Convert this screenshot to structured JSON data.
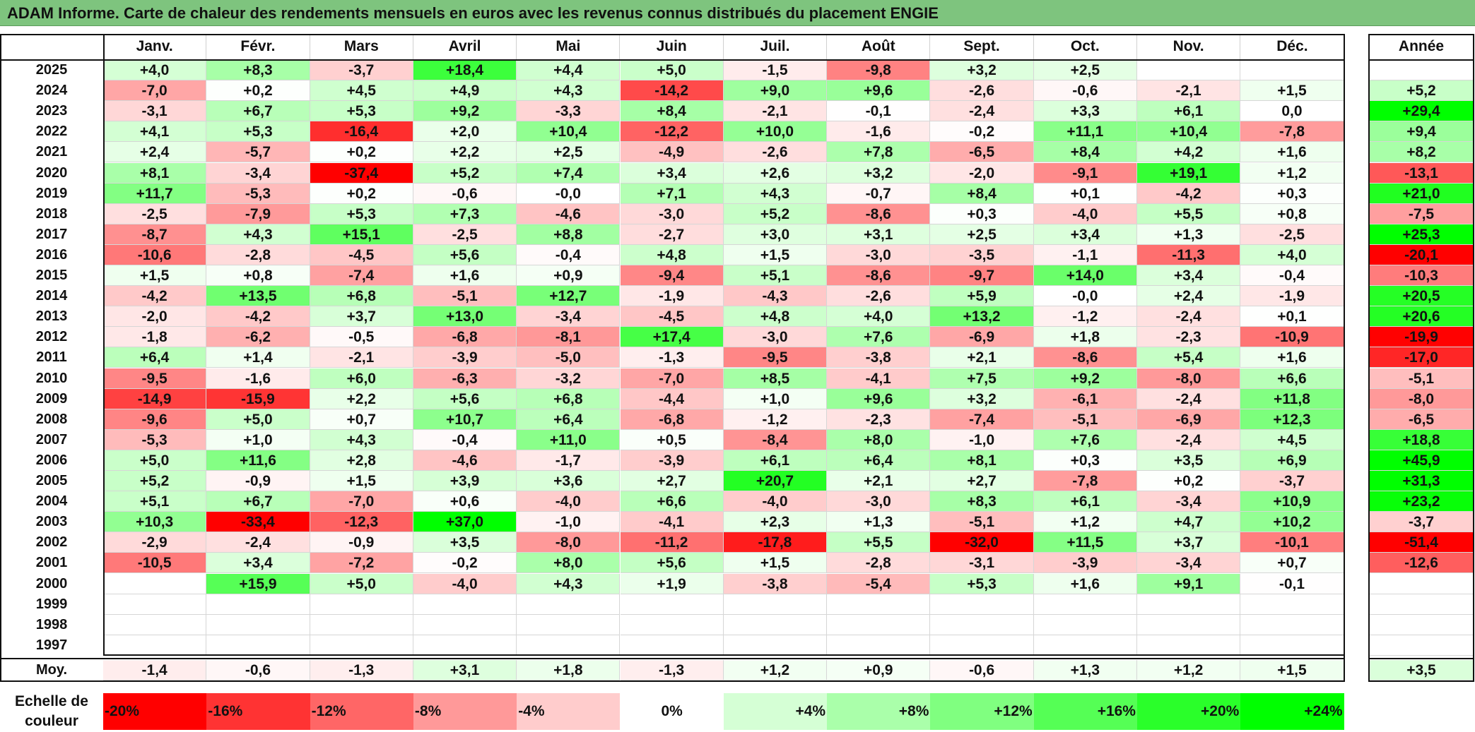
{
  "title": "ADAM Informe. Carte de chaleur des rendements mensuels en euros avec les revenus connus distribués du placement ENGIE",
  "chart_data": {
    "type": "heatmap",
    "title": "ADAM Informe. Carte de chaleur des rendements mensuels en euros avec les revenus connus distribués du placement ENGIE",
    "columns": [
      "Janv.",
      "Févr.",
      "Mars",
      "Avril",
      "Mai",
      "Juin",
      "Juil.",
      "Août",
      "Sept.",
      "Oct.",
      "Nov.",
      "Déc."
    ],
    "year_header": "Année",
    "rows": [
      {
        "year": "2025",
        "values": [
          "+4,0",
          "+8,3",
          "-3,7",
          "+18,4",
          "+4,4",
          "+5,0",
          "-1,5",
          "-9,8",
          "+3,2",
          "+2,5",
          "",
          ""
        ],
        "annual": ""
      },
      {
        "year": "2024",
        "values": [
          "-7,0",
          "+0,2",
          "+4,5",
          "+4,9",
          "+4,3",
          "-14,2",
          "+9,0",
          "+9,6",
          "-2,6",
          "-0,6",
          "-2,1",
          "+1,5"
        ],
        "annual": "+5,2"
      },
      {
        "year": "2023",
        "values": [
          "-3,1",
          "+6,7",
          "+5,3",
          "+9,2",
          "-3,3",
          "+8,4",
          "-2,1",
          "-0,1",
          "-2,4",
          "+3,3",
          "+6,1",
          "0,0"
        ],
        "annual": "+29,4"
      },
      {
        "year": "2022",
        "values": [
          "+4,1",
          "+5,3",
          "-16,4",
          "+2,0",
          "+10,4",
          "-12,2",
          "+10,0",
          "-1,6",
          "-0,2",
          "+11,1",
          "+10,4",
          "-7,8"
        ],
        "annual": "+9,4"
      },
      {
        "year": "2021",
        "values": [
          "+2,4",
          "-5,7",
          "+0,2",
          "+2,2",
          "+2,5",
          "-4,9",
          "-2,6",
          "+7,8",
          "-6,5",
          "+8,4",
          "+4,2",
          "+1,6"
        ],
        "annual": "+8,2"
      },
      {
        "year": "2020",
        "values": [
          "+8,1",
          "-3,4",
          "-37,4",
          "+5,2",
          "+7,4",
          "+3,4",
          "+2,6",
          "+3,2",
          "-2,0",
          "-9,1",
          "+19,1",
          "+1,2"
        ],
        "annual": "-13,1"
      },
      {
        "year": "2019",
        "values": [
          "+11,7",
          "-5,3",
          "+0,2",
          "-0,6",
          "-0,0",
          "+7,1",
          "+4,3",
          "-0,7",
          "+8,4",
          "+0,1",
          "-4,2",
          "+0,3"
        ],
        "annual": "+21,0"
      },
      {
        "year": "2018",
        "values": [
          "-2,5",
          "-7,9",
          "+5,3",
          "+7,3",
          "-4,6",
          "-3,0",
          "+5,2",
          "-8,6",
          "+0,3",
          "-4,0",
          "+5,5",
          "+0,8"
        ],
        "annual": "-7,5"
      },
      {
        "year": "2017",
        "values": [
          "-8,7",
          "+4,3",
          "+15,1",
          "-2,5",
          "+8,8",
          "-2,7",
          "+3,0",
          "+3,1",
          "+2,5",
          "+3,4",
          "+1,3",
          "-2,5"
        ],
        "annual": "+25,3"
      },
      {
        "year": "2016",
        "values": [
          "-10,6",
          "-2,8",
          "-4,5",
          "+5,6",
          "-0,4",
          "+4,8",
          "+1,5",
          "-3,0",
          "-3,5",
          "-1,1",
          "-11,3",
          "+4,0"
        ],
        "annual": "-20,1"
      },
      {
        "year": "2015",
        "values": [
          "+1,5",
          "+0,8",
          "-7,4",
          "+1,6",
          "+0,9",
          "-9,4",
          "+5,1",
          "-8,6",
          "-9,7",
          "+14,0",
          "+3,4",
          "-0,4"
        ],
        "annual": "-10,3"
      },
      {
        "year": "2014",
        "values": [
          "-4,2",
          "+13,5",
          "+6,8",
          "-5,1",
          "+12,7",
          "-1,9",
          "-4,3",
          "-2,6",
          "+5,9",
          "-0,0",
          "+2,4",
          "-1,9"
        ],
        "annual": "+20,5"
      },
      {
        "year": "2013",
        "values": [
          "-2,0",
          "-4,2",
          "+3,7",
          "+13,0",
          "-3,4",
          "-4,5",
          "+4,8",
          "+4,0",
          "+13,2",
          "-1,2",
          "-2,4",
          "+0,1"
        ],
        "annual": "+20,6"
      },
      {
        "year": "2012",
        "values": [
          "-1,8",
          "-6,2",
          "-0,5",
          "-6,8",
          "-8,1",
          "+17,4",
          "-3,0",
          "+7,6",
          "-6,9",
          "+1,8",
          "-2,3",
          "-10,9"
        ],
        "annual": "-19,9"
      },
      {
        "year": "2011",
        "values": [
          "+6,4",
          "+1,4",
          "-2,1",
          "-3,9",
          "-5,0",
          "-1,3",
          "-9,5",
          "-3,8",
          "+2,1",
          "-8,6",
          "+5,4",
          "+1,6"
        ],
        "annual": "-17,0"
      },
      {
        "year": "2010",
        "values": [
          "-9,5",
          "-1,6",
          "+6,0",
          "-6,3",
          "-3,2",
          "-7,0",
          "+8,5",
          "-4,1",
          "+7,5",
          "+9,2",
          "-8,0",
          "+6,6"
        ],
        "annual": "-5,1"
      },
      {
        "year": "2009",
        "values": [
          "-14,9",
          "-15,9",
          "+2,2",
          "+5,6",
          "+6,8",
          "-4,4",
          "+1,0",
          "+9,6",
          "+3,2",
          "-6,1",
          "-2,4",
          "+11,8"
        ],
        "annual": "-8,0"
      },
      {
        "year": "2008",
        "values": [
          "-9,6",
          "+5,0",
          "+0,7",
          "+10,7",
          "+6,4",
          "-6,8",
          "-1,2",
          "-2,3",
          "-7,4",
          "-5,1",
          "-6,9",
          "+12,3"
        ],
        "annual": "-6,5"
      },
      {
        "year": "2007",
        "values": [
          "-5,3",
          "+1,0",
          "+4,3",
          "-0,4",
          "+11,0",
          "+0,5",
          "-8,4",
          "+8,0",
          "-1,0",
          "+7,6",
          "-2,4",
          "+4,5"
        ],
        "annual": "+18,8"
      },
      {
        "year": "2006",
        "values": [
          "+5,0",
          "+11,6",
          "+2,8",
          "-4,6",
          "-1,7",
          "-3,9",
          "+6,1",
          "+6,4",
          "+8,1",
          "+0,3",
          "+3,5",
          "+6,9"
        ],
        "annual": "+45,9"
      },
      {
        "year": "2005",
        "values": [
          "+5,2",
          "-0,9",
          "+1,5",
          "+3,9",
          "+3,6",
          "+2,7",
          "+20,7",
          "+2,1",
          "+2,7",
          "-7,8",
          "+0,2",
          "-3,7"
        ],
        "annual": "+31,3"
      },
      {
        "year": "2004",
        "values": [
          "+5,1",
          "+6,7",
          "-7,0",
          "+0,6",
          "-4,0",
          "+6,6",
          "-4,0",
          "-3,0",
          "+8,3",
          "+6,1",
          "-3,4",
          "+10,9"
        ],
        "annual": "+23,2"
      },
      {
        "year": "2003",
        "values": [
          "+10,3",
          "-33,4",
          "-12,3",
          "+37,0",
          "-1,0",
          "-4,1",
          "+2,3",
          "+1,3",
          "-5,1",
          "+1,2",
          "+4,7",
          "+10,2"
        ],
        "annual": "-3,7"
      },
      {
        "year": "2002",
        "values": [
          "-2,9",
          "-2,4",
          "-0,9",
          "+3,5",
          "-8,0",
          "-11,2",
          "-17,8",
          "+5,5",
          "-32,0",
          "+11,5",
          "+3,7",
          "-10,1"
        ],
        "annual": "-51,4"
      },
      {
        "year": "2001",
        "values": [
          "-10,5",
          "+3,4",
          "-7,2",
          "-0,2",
          "+8,0",
          "+5,6",
          "+1,5",
          "-2,8",
          "-3,1",
          "-3,9",
          "-3,4",
          "+0,7"
        ],
        "annual": "-12,6"
      },
      {
        "year": "2000",
        "values": [
          "",
          "+15,9",
          "+5,0",
          "-4,0",
          "+4,3",
          "+1,9",
          "-3,8",
          "-5,4",
          "+5,3",
          "+1,6",
          "+9,1",
          "-0,1"
        ],
        "annual": ""
      },
      {
        "year": "1999",
        "values": [
          "",
          "",
          "",
          "",
          "",
          "",
          "",
          "",
          "",
          "",
          "",
          ""
        ],
        "annual": ""
      },
      {
        "year": "1998",
        "values": [
          "",
          "",
          "",
          "",
          "",
          "",
          "",
          "",
          "",
          "",
          "",
          ""
        ],
        "annual": ""
      },
      {
        "year": "1997",
        "values": [
          "",
          "",
          "",
          "",
          "",
          "",
          "",
          "",
          "",
          "",
          "",
          ""
        ],
        "annual": ""
      }
    ],
    "average": {
      "label": "Moy.",
      "values": [
        "-1,4",
        "-0,6",
        "-1,3",
        "+3,1",
        "+1,8",
        "-1,3",
        "+1,2",
        "+0,9",
        "-0,6",
        "+1,3",
        "+1,2",
        "+1,5"
      ],
      "annual": "+3,5"
    },
    "color_scale": {
      "label": "Echelle de couleur",
      "stops": [
        "-20%",
        "-16%",
        "-12%",
        "-8%",
        "-4%",
        "0%",
        "+4%",
        "+8%",
        "+12%",
        "+16%",
        "+20%",
        "+24%"
      ],
      "negative_color": "#ff0000",
      "neutral_color": "#ffffff",
      "positive_color": "#00ff00"
    }
  }
}
